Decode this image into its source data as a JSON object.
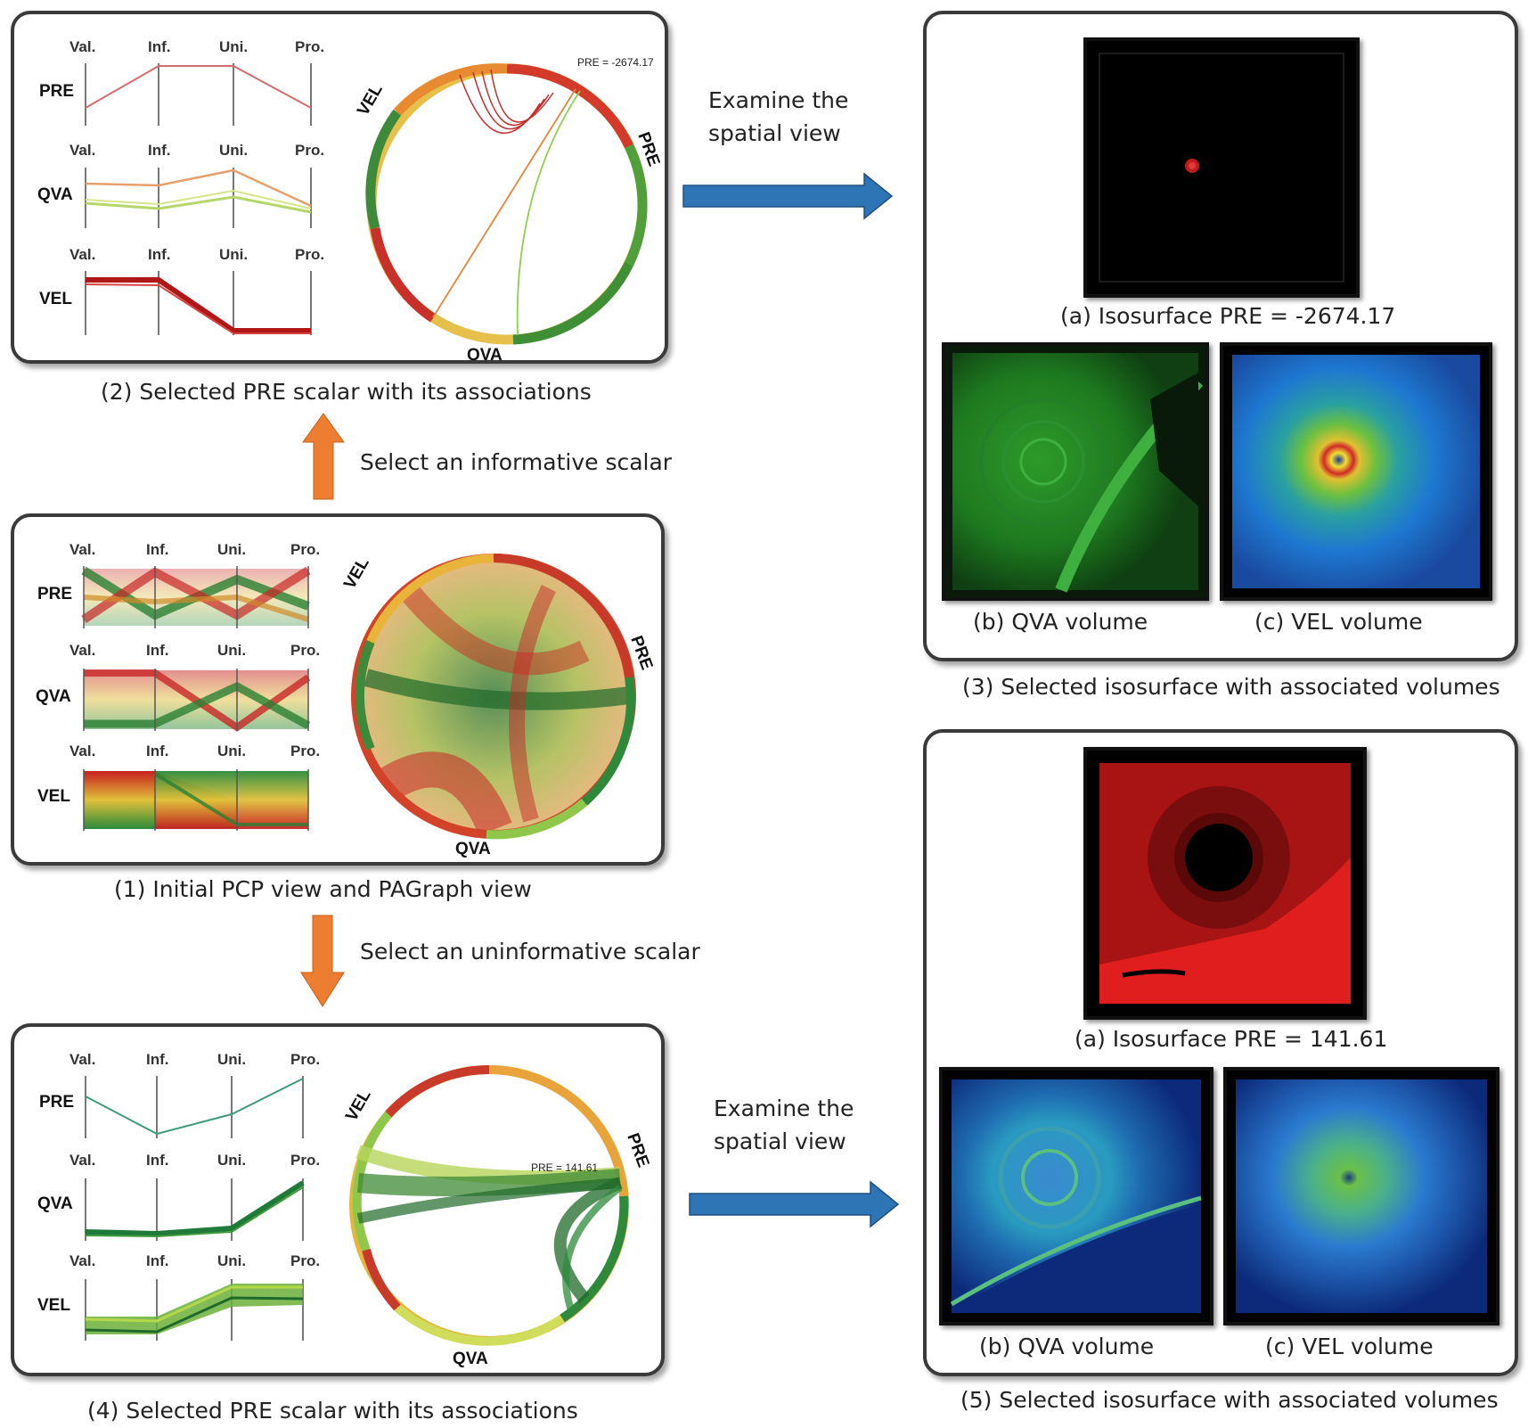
{
  "panel1": {
    "caption": "(1) Initial PCP view and PAGraph view",
    "axes": [
      "Val.",
      "Inf.",
      "Uni.",
      "Pro."
    ],
    "rows": [
      "PRE",
      "QVA",
      "VEL"
    ],
    "chord_labels": {
      "vel": "VEL",
      "pre": "PRE",
      "qva": "QVA"
    }
  },
  "panel2": {
    "caption": "(2) Selected PRE scalar with its associations",
    "axes": [
      "Val.",
      "Inf.",
      "Uni.",
      "Pro."
    ],
    "rows": [
      "PRE",
      "QVA",
      "VEL"
    ],
    "chord_labels": {
      "vel": "VEL",
      "pre": "PRE",
      "qva": "QVA"
    },
    "value_label": "PRE = -2674.17"
  },
  "panel3": {
    "caption": "(3) Selected isosurface with associated volumes",
    "iso_caption": "(a) Isosurface PRE = -2674.17",
    "qva_caption": "(b) QVA volume",
    "vel_caption": "(c) VEL volume"
  },
  "panel4": {
    "caption": "(4) Selected PRE scalar with its associations",
    "axes": [
      "Val.",
      "Inf.",
      "Uni.",
      "Pro."
    ],
    "rows": [
      "PRE",
      "QVA",
      "VEL"
    ],
    "chord_labels": {
      "vel": "VEL",
      "pre": "PRE",
      "qva": "QVA"
    },
    "value_label": "PRE = 141.61"
  },
  "panel5": {
    "caption": "(5) Selected isosurface with associated volumes",
    "iso_caption": "(a) Isosurface PRE = 141.61",
    "qva_caption": "(b) QVA volume",
    "vel_caption": "(c) VEL volume"
  },
  "arrows": {
    "informative": "Select an informative scalar",
    "uninformative": "Select an uninformative scalar",
    "examine_top_1": "Examine the",
    "examine_top_2": "spatial view",
    "examine_bottom_1": "Examine the",
    "examine_bottom_2": "spatial view"
  },
  "colors": {
    "arrow_orange": "#ED7D31",
    "arrow_blue": "#2E75B6",
    "pcp_red": "#c0282a",
    "pcp_green": "#2e8b3a"
  }
}
